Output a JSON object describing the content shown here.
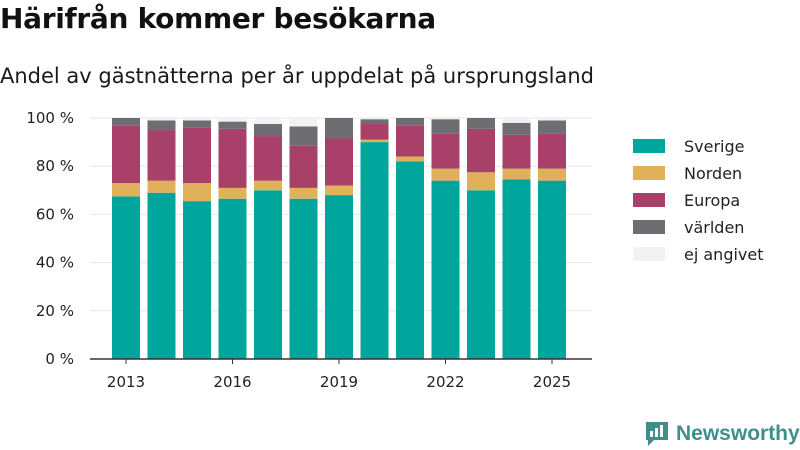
{
  "title": "Härifrån kommer besökarna",
  "subtitle": "Andel av gästnätterna per år uppdelat på ursprungsland",
  "brand": {
    "name": "Newsworthy",
    "icon": "newsworthy-logo-icon"
  },
  "colors": {
    "Sverige": "#00a59b",
    "Norden": "#e0b05b",
    "Europa": "#a8406a",
    "världen": "#6e6e72",
    "ej angivet": "#f2f2f4"
  },
  "chart_data": {
    "type": "bar",
    "stacked": true,
    "categories": [
      "2013",
      "2014",
      "2015",
      "2016",
      "2017",
      "2018",
      "2019",
      "2020",
      "2021",
      "2022",
      "2023",
      "2024",
      "2025"
    ],
    "x_ticks": [
      "2013",
      "2016",
      "2019",
      "2022",
      "2025"
    ],
    "y_ticks": [
      "0 %",
      "20 %",
      "40 %",
      "60 %",
      "80 %",
      "100 %"
    ],
    "ylim": [
      0,
      100
    ],
    "grid": true,
    "legend_position": "right",
    "series": [
      {
        "name": "Sverige",
        "values": [
          67.5,
          69,
          65.5,
          66.5,
          70,
          66.5,
          68,
          90,
          82,
          74,
          70,
          74.5,
          74
        ]
      },
      {
        "name": "Norden",
        "values": [
          5.5,
          5,
          7.5,
          4.5,
          4,
          4.5,
          4,
          1,
          2,
          5,
          7.5,
          4.5,
          5
        ]
      },
      {
        "name": "Europa",
        "values": [
          24,
          21,
          23,
          24.5,
          18.5,
          17.5,
          19.5,
          6.5,
          13,
          14.5,
          18,
          14,
          14.5
        ]
      },
      {
        "name": "världen",
        "values": [
          3,
          4,
          3,
          3,
          5,
          8,
          8.5,
          2,
          3,
          6,
          4.5,
          5,
          5.5
        ]
      },
      {
        "name": "ej angivet",
        "values": [
          0,
          1,
          1,
          1.5,
          2.5,
          3.5,
          0,
          0.5,
          0,
          0.5,
          0,
          2,
          1
        ]
      }
    ]
  }
}
